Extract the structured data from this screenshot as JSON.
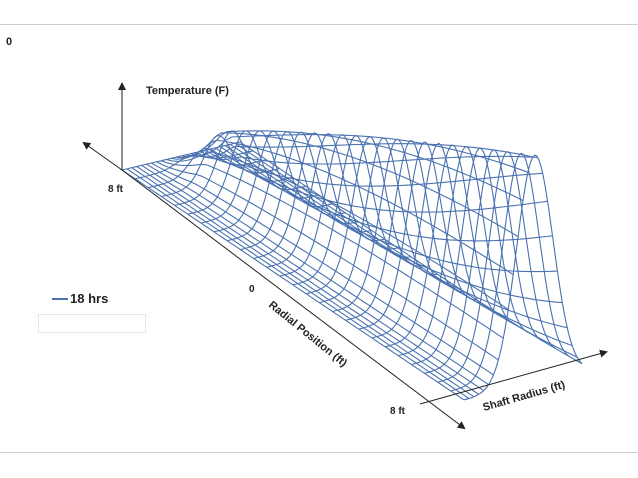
{
  "corner_value": "0",
  "chart_data": {
    "type": "surface",
    "axes": {
      "vertical_label": "Temperature (F)",
      "radial_label": "Radial Position (ft)",
      "shaft_label": "Shaft Radius (ft)",
      "radial_start_tick": "0",
      "radial_end_tick": "8 ft",
      "back_tick": "8 ft"
    },
    "series": [
      {
        "name": "18 hrs",
        "color": "#4a72b0",
        "description_values": {
          "radial_position_ft": [
            0,
            8
          ],
          "shaft_radius_ft": [
            0,
            8
          ]
        }
      }
    ],
    "mesh_color": "#4a72b0",
    "grid": true
  }
}
